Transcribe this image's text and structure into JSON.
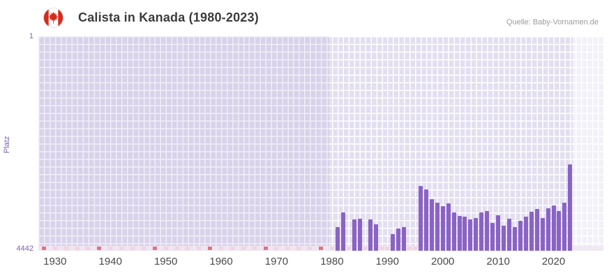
{
  "header": {
    "title": "Calista in Kanada (1980-2023)",
    "source": "Quelle: Baby-Vornamen.de",
    "flag_icon": "canada-flag-icon"
  },
  "chart_data": {
    "type": "bar",
    "title": "Calista in Kanada (1980-2023)",
    "xlabel": "",
    "ylabel": "Platz",
    "y_top_label": "1",
    "y_bottom_label": "4442",
    "y_min": 1,
    "y_max": 4442,
    "y_inverted": true,
    "x_range": [
      1927,
      2029
    ],
    "x_ticks": [
      1930,
      1940,
      1950,
      1960,
      1970,
      1980,
      1990,
      2000,
      2010,
      2020
    ],
    "data_start": 1980,
    "data_end": 2023,
    "years": [
      1981,
      1982,
      1983,
      1984,
      1985,
      1986,
      1987,
      1988,
      1989,
      1990,
      1991,
      1992,
      1993,
      1994,
      1995,
      1996,
      1997,
      1998,
      1999,
      2000,
      2001,
      2002,
      2003,
      2004,
      2005,
      2006,
      2007,
      2008,
      2009,
      2010,
      2011,
      2012,
      2013,
      2014,
      2015,
      2016,
      2017,
      2018,
      2019,
      2020,
      2021,
      2022,
      2023
    ],
    "ranks": [
      3950,
      3650,
      null,
      3800,
      3780,
      null,
      3790,
      3900,
      null,
      null,
      4100,
      3980,
      3950,
      null,
      null,
      3100,
      3180,
      3380,
      3450,
      3520,
      3460,
      3650,
      3720,
      3730,
      3800,
      3760,
      3650,
      3620,
      3870,
      3700,
      3920,
      3780,
      3950,
      3820,
      3740,
      3640,
      3580,
      3760,
      3560,
      3500,
      3620,
      3450,
      2650
    ],
    "strong_marker_years": [
      1928,
      1938,
      1948,
      1958,
      1968,
      1978
    ],
    "legend": null,
    "grid": true,
    "colors": {
      "bar": "#8a63c4",
      "plot_background": "#e3dff0",
      "grid_line": "#ffffff",
      "no_data_marker_strong": "#e4717f",
      "no_data_marker_pale": "#f3d3e0",
      "axis_text": "#7a5fb5",
      "x_tick_text": "#4a4a4a",
      "flag_red": "#d52b1e"
    }
  }
}
